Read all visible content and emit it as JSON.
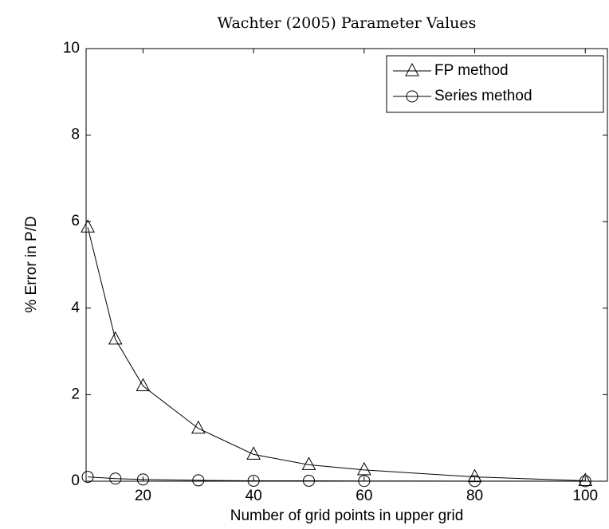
{
  "chart_data": {
    "type": "line",
    "title": "Wachter (2005) Parameter Values",
    "xlabel": "Number of grid points in upper grid",
    "ylabel": "% Error in P/D",
    "x": [
      10,
      15,
      20,
      30,
      40,
      50,
      60,
      80,
      100
    ],
    "series": [
      {
        "name": "FP method",
        "color": "#000000",
        "marker": "triangle",
        "values": [
          5.87,
          3.28,
          2.2,
          1.22,
          0.62,
          0.38,
          0.26,
          0.1,
          0.01
        ]
      },
      {
        "name": "Series method",
        "color": "#000000",
        "marker": "circle",
        "values": [
          0.1,
          0.06,
          0.04,
          0.02,
          0.01,
          0.01,
          0.005,
          0.003,
          0.0
        ]
      }
    ],
    "xlim": [
      9.7,
      104
    ],
    "xticks": [
      20,
      40,
      60,
      80,
      100
    ],
    "ylim": [
      0,
      10
    ],
    "yticks": [
      0,
      2,
      4,
      6,
      8,
      10
    ],
    "legend": "upper right",
    "grid": false
  }
}
